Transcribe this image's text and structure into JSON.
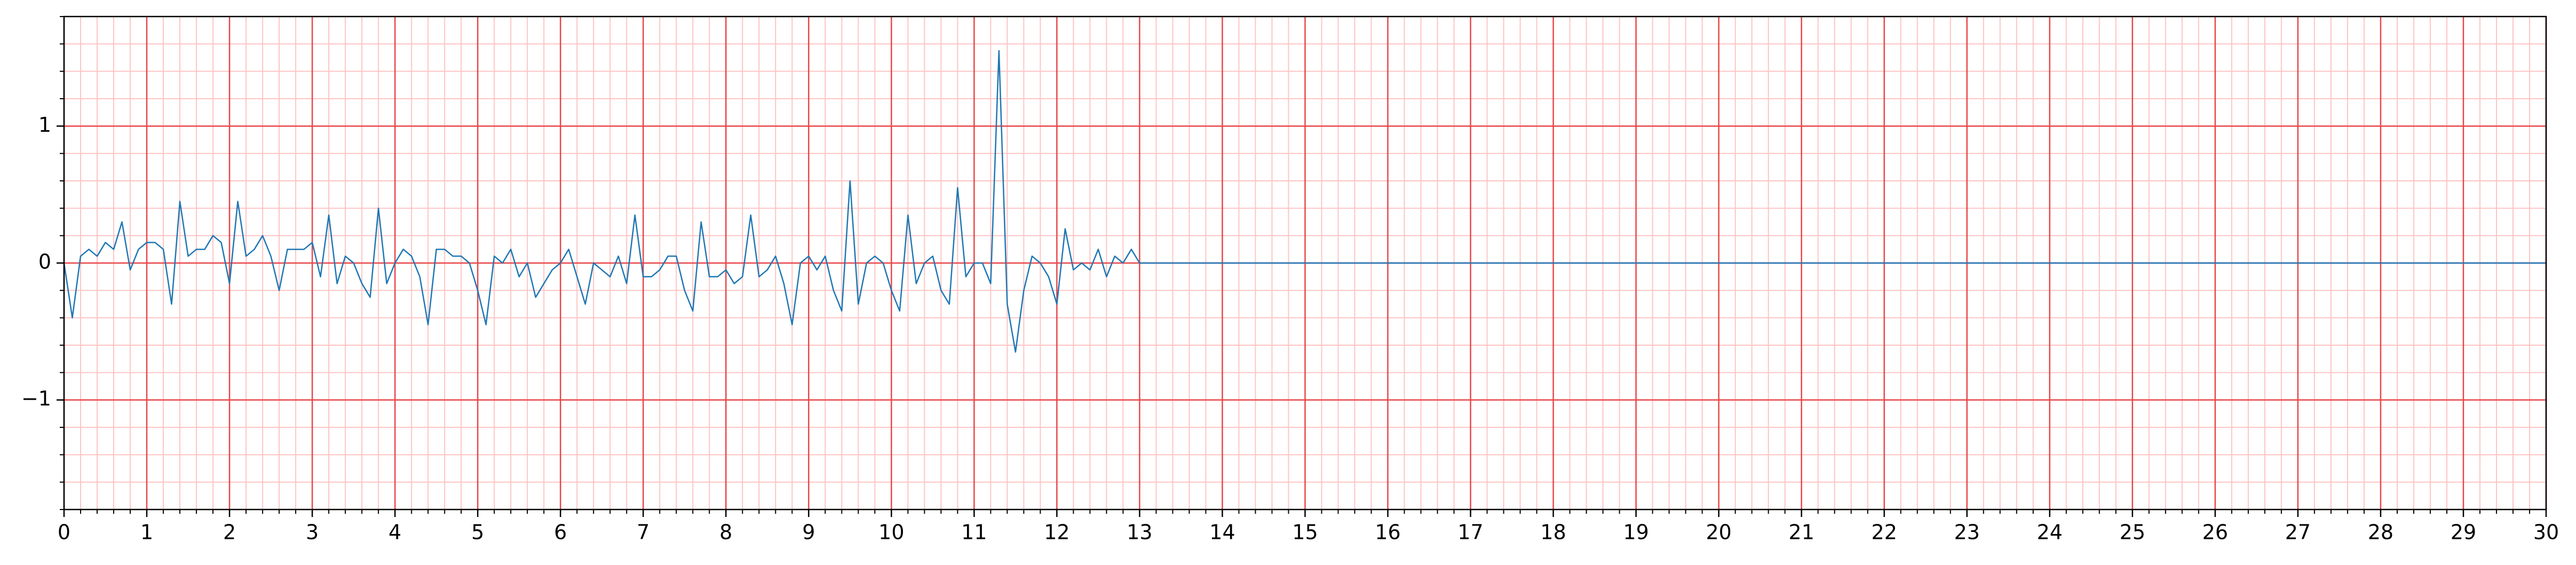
{
  "chart_data": {
    "type": "line",
    "color": "#1f77b4",
    "x": [
      0,
      0.1,
      0.2,
      0.3,
      0.4,
      0.5,
      0.6,
      0.7,
      0.8,
      0.9,
      1,
      1.1,
      1.2,
      1.3,
      1.4,
      1.5,
      1.6,
      1.7,
      1.8,
      1.9,
      2,
      2.1,
      2.2,
      2.3,
      2.4,
      2.5,
      2.6,
      2.7,
      2.8,
      2.9,
      3,
      3.1,
      3.2,
      3.3,
      3.4,
      3.5,
      3.6,
      3.7,
      3.8,
      3.9,
      4,
      4.1,
      4.2,
      4.3,
      4.4,
      4.5,
      4.6,
      4.7,
      4.8,
      4.9,
      5,
      5.1,
      5.2,
      5.3,
      5.4,
      5.5,
      5.6,
      5.7,
      5.8,
      5.9,
      6,
      6.1,
      6.2,
      6.3,
      6.4,
      6.5,
      6.6,
      6.7,
      6.8,
      6.9,
      7,
      7.1,
      7.2,
      7.3,
      7.4,
      7.5,
      7.6,
      7.7,
      7.8,
      7.9,
      8,
      8.1,
      8.2,
      8.3,
      8.4,
      8.5,
      8.6,
      8.7,
      8.8,
      8.9,
      9,
      9.1,
      9.2,
      9.3,
      9.4,
      9.5,
      9.6,
      9.7,
      9.8,
      9.9,
      10,
      10.1,
      10.2,
      10.3,
      10.4,
      10.5,
      10.6,
      10.7,
      10.8,
      10.9,
      11,
      11.1,
      11.2,
      11.3,
      11.4,
      11.5,
      11.6,
      11.7,
      11.8,
      11.9,
      12,
      12.1,
      12.2,
      12.3,
      12.4,
      12.5,
      12.6,
      12.7,
      12.8,
      12.9,
      13,
      30
    ],
    "values": [
      0,
      -0.4,
      0.05,
      0.1,
      0.05,
      0.15,
      0.1,
      0.3,
      -0.05,
      0.1,
      0.15,
      0.15,
      0.1,
      -0.3,
      0.45,
      0.05,
      0.1,
      0.1,
      0.2,
      0.15,
      -0.15,
      0.45,
      0.05,
      0.1,
      0.2,
      0.05,
      -0.2,
      0.1,
      0.1,
      0.1,
      0.15,
      -0.1,
      0.35,
      -0.15,
      0.05,
      0,
      -0.15,
      -0.25,
      0.4,
      -0.15,
      0,
      0.1,
      0.05,
      -0.1,
      -0.45,
      0.1,
      0.1,
      0.05,
      0.05,
      0,
      -0.2,
      -0.45,
      0.05,
      0,
      0.1,
      -0.1,
      0,
      -0.25,
      -0.15,
      -0.05,
      0,
      0.1,
      -0.1,
      -0.3,
      0,
      -0.05,
      -0.1,
      0.05,
      -0.15,
      0.35,
      -0.1,
      -0.1,
      -0.05,
      0.05,
      0.05,
      -0.2,
      -0.35,
      0.3,
      -0.1,
      -0.1,
      -0.05,
      -0.15,
      -0.1,
      0.35,
      -0.1,
      -0.05,
      0.05,
      -0.15,
      -0.45,
      0,
      0.05,
      -0.05,
      0.05,
      -0.2,
      -0.35,
      0.6,
      -0.3,
      0,
      0.05,
      0,
      -0.2,
      -0.35,
      0.35,
      -0.15,
      0,
      0.05,
      -0.2,
      -0.3,
      0.55,
      -0.1,
      0,
      0,
      -0.15,
      1.55,
      -0.3,
      -0.65,
      -0.2,
      0.05,
      0,
      -0.1,
      -0.3,
      0.25,
      -0.05,
      0,
      -0.05,
      0.1,
      -0.1,
      0.05,
      0,
      0.1,
      0,
      0
    ],
    "xlim": [
      0,
      30
    ],
    "ylim": [
      -1.8,
      1.8
    ],
    "xticks": [
      0,
      1,
      2,
      3,
      4,
      5,
      6,
      7,
      8,
      9,
      10,
      11,
      12,
      13,
      14,
      15,
      16,
      17,
      18,
      19,
      20,
      21,
      22,
      23,
      24,
      25,
      26,
      27,
      28,
      29,
      30
    ],
    "yticks": [
      {
        "value": -1,
        "label": "−1"
      },
      0,
      1
    ],
    "grid": true,
    "minor_grid": 0.2,
    "grid_color": "#e8474a",
    "minor_grid_color": "#ffc4c4"
  }
}
